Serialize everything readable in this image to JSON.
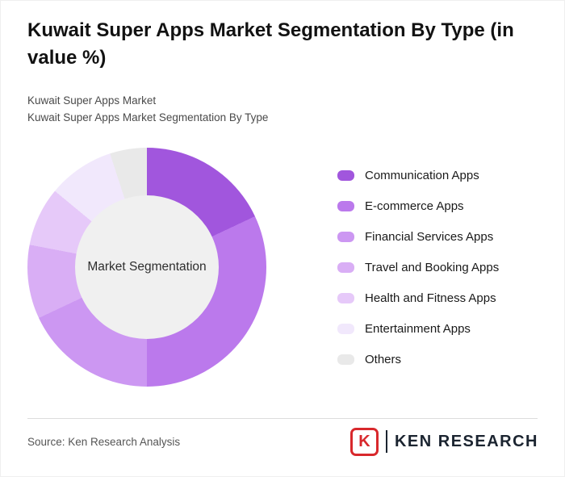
{
  "header": {
    "title": "Kuwait Super Apps Market Segmentation By Type (in value %)",
    "subtitle_line1": "Kuwait Super Apps Market",
    "subtitle_line2": "Kuwait Super Apps Market Segmentation By Type"
  },
  "chart_data": {
    "type": "pie",
    "donut": true,
    "title": "Kuwait Super Apps Market Segmentation By Type (in value %)",
    "center_label": "Market Segmentation",
    "legend_position": "right",
    "start_angle_deg": 0,
    "direction": "clockwise",
    "center_fill_color": "#f0f0f0",
    "segments": [
      {
        "label": "Communication Apps",
        "value": 18,
        "color": "#a156dd"
      },
      {
        "label": "E-commerce Apps",
        "value": 32,
        "color": "#bb79ec"
      },
      {
        "label": "Financial Services Apps",
        "value": 18,
        "color": "#cc97f2"
      },
      {
        "label": "Travel and Booking Apps",
        "value": 10,
        "color": "#d9aef5"
      },
      {
        "label": "Health and Fitness Apps",
        "value": 8,
        "color": "#e6c9f9"
      },
      {
        "label": "Entertainment Apps",
        "value": 9,
        "color": "#f1e8fc"
      },
      {
        "label": "Others",
        "value": 5,
        "color": "#e9e9e9"
      }
    ]
  },
  "footer": {
    "source": "Source: Ken Research Analysis",
    "logo": {
      "letter": "K",
      "brand": "KEN RESEARCH",
      "accent_color": "#d8282c"
    }
  }
}
